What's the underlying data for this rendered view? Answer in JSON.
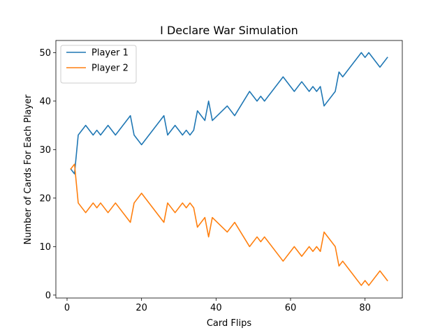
{
  "chart_data": {
    "type": "line",
    "title": "I Declare War Simulation",
    "xlabel": "Card Flips",
    "ylabel": "Number of Cards For Each Player",
    "xlim": [
      -3,
      90
    ],
    "ylim": [
      -0.6,
      52.5
    ],
    "xticks": [
      0,
      20,
      40,
      60,
      80
    ],
    "yticks": [
      0,
      10,
      20,
      30,
      40,
      50
    ],
    "grid": false,
    "legend_position": "top-left",
    "series": [
      {
        "name": "Player 1",
        "color": "#1f77b4",
        "x": [
          1,
          2,
          3,
          5,
          7,
          8,
          9,
          11,
          13,
          17,
          18,
          20,
          26,
          27,
          29,
          31,
          32,
          33,
          34,
          35,
          37,
          38,
          39,
          43,
          45,
          49,
          51,
          52,
          53,
          58,
          61,
          63,
          65,
          66,
          67,
          68,
          69,
          72,
          73,
          74,
          79,
          80,
          81,
          84,
          86
        ],
        "y": [
          26,
          25,
          33,
          35,
          33,
          34,
          33,
          35,
          33,
          37,
          33,
          31,
          37,
          33,
          35,
          33,
          34,
          33,
          34,
          38,
          36,
          40,
          36,
          39,
          37,
          42,
          40,
          41,
          40,
          45,
          42,
          44,
          42,
          43,
          42,
          43,
          39,
          42,
          46,
          45,
          50,
          49,
          50,
          47,
          49
        ]
      },
      {
        "name": "Player 2",
        "color": "#ff7f0e",
        "x": [
          1,
          2,
          3,
          5,
          7,
          8,
          9,
          11,
          13,
          17,
          18,
          20,
          26,
          27,
          29,
          31,
          32,
          33,
          34,
          35,
          37,
          38,
          39,
          43,
          45,
          49,
          51,
          52,
          53,
          58,
          61,
          63,
          65,
          66,
          67,
          68,
          69,
          72,
          73,
          74,
          79,
          80,
          81,
          84,
          86
        ],
        "y": [
          26,
          27,
          19,
          17,
          19,
          18,
          19,
          17,
          19,
          15,
          19,
          21,
          15,
          19,
          17,
          19,
          18,
          19,
          18,
          14,
          16,
          12,
          16,
          13,
          15,
          10,
          12,
          11,
          12,
          7,
          10,
          8,
          10,
          9,
          10,
          9,
          13,
          10,
          6,
          7,
          2,
          3,
          2,
          5,
          3
        ]
      }
    ]
  }
}
